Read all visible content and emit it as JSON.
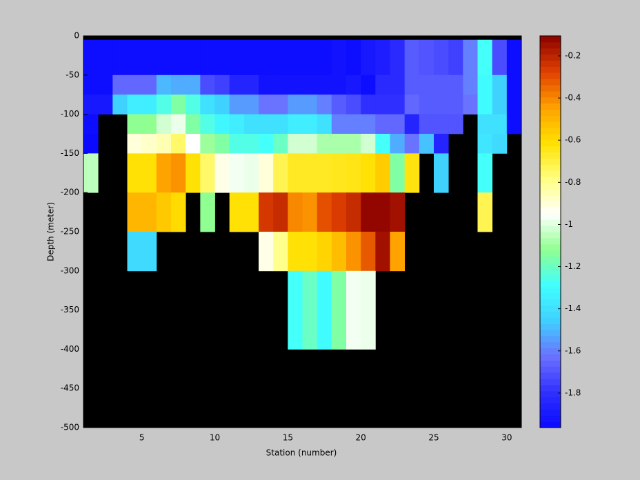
{
  "chart_data": {
    "type": "heatmap",
    "xlabel": "Station (number)",
    "ylabel": "Depth (meter)",
    "xlim": [
      1,
      31
    ],
    "ylim": [
      -500,
      0
    ],
    "xticks": [
      5,
      10,
      15,
      20,
      25,
      30
    ],
    "yticks": [
      0,
      -50,
      -100,
      -150,
      -200,
      -250,
      -300,
      -350,
      -400,
      -450,
      -500
    ],
    "x_edges": [
      1,
      2,
      3,
      4,
      5,
      6,
      7,
      8,
      9,
      10,
      11,
      12,
      13,
      14,
      15,
      16,
      17,
      18,
      19,
      20,
      21,
      22,
      23,
      24,
      25,
      26,
      27,
      28,
      29,
      30,
      31
    ],
    "y_edges": [
      -5,
      -50,
      -75,
      -100,
      -125,
      -150,
      -200,
      -250,
      -300,
      -400
    ],
    "z": [
      [
        -1.95,
        -1.95,
        -1.95,
        -1.95,
        -1.95,
        -1.95,
        -1.95,
        -1.95,
        -1.95,
        -1.95,
        -1.95,
        -1.95,
        -1.95,
        -1.95,
        -1.95,
        -1.95,
        -1.95,
        -1.93,
        -1.95,
        -1.9,
        -1.88,
        -1.82,
        -1.68,
        -1.7,
        -1.72,
        -1.75,
        -1.6,
        -1.28,
        -1.72,
        -1.95
      ],
      [
        -1.95,
        -1.95,
        -1.65,
        -1.65,
        -1.65,
        -1.5,
        -1.52,
        -1.52,
        -1.72,
        -1.75,
        -1.85,
        -1.85,
        -1.93,
        -1.93,
        -1.93,
        -1.93,
        -1.93,
        -1.93,
        -1.9,
        -1.95,
        -1.82,
        -1.82,
        -1.68,
        -1.68,
        -1.68,
        -1.68,
        -1.6,
        -1.3,
        -1.45,
        -1.95
      ],
      [
        -1.9,
        -1.9,
        -1.45,
        -1.35,
        -1.35,
        -1.25,
        -1.15,
        -1.25,
        -1.4,
        -1.45,
        -1.55,
        -1.55,
        -1.62,
        -1.62,
        -1.55,
        -1.55,
        -1.6,
        -1.68,
        -1.72,
        -1.8,
        -1.8,
        -1.8,
        -1.65,
        -1.68,
        -1.68,
        -1.68,
        -1.62,
        -1.3,
        -1.45,
        -1.95
      ],
      [
        -1.95,
        null,
        null,
        -1.12,
        -1.12,
        -1.02,
        -0.98,
        -1.15,
        -1.25,
        -1.32,
        -1.35,
        -1.4,
        -1.4,
        -1.4,
        -1.35,
        -1.35,
        -1.4,
        -1.6,
        -1.6,
        -1.6,
        -1.65,
        -1.65,
        -1.85,
        -1.7,
        -1.7,
        -1.7,
        null,
        -1.4,
        -1.4,
        -1.95
      ],
      [
        -1.97,
        null,
        null,
        -0.9,
        -0.88,
        -0.85,
        -0.75,
        -0.95,
        -1.1,
        -1.15,
        -1.25,
        -1.25,
        -1.28,
        -1.2,
        -1.02,
        -1.02,
        -1.08,
        -1.08,
        -1.08,
        -1.02,
        -1.28,
        -1.52,
        -1.62,
        -1.48,
        -1.85,
        null,
        null,
        -1.38,
        -1.42,
        null
      ],
      [
        -1.05,
        null,
        null,
        -0.62,
        -0.62,
        -0.45,
        -0.42,
        -0.62,
        -0.75,
        -0.92,
        -0.97,
        -0.98,
        -0.9,
        -0.72,
        -0.66,
        -0.66,
        -0.66,
        -0.65,
        -0.64,
        -0.62,
        -0.56,
        -1.15,
        -0.63,
        null,
        -1.45,
        null,
        null,
        -1.28,
        null,
        null
      ],
      [
        null,
        null,
        null,
        -0.5,
        -0.5,
        -0.55,
        -0.6,
        null,
        -1.12,
        null,
        -0.62,
        -0.62,
        -0.25,
        -0.22,
        -0.4,
        -0.42,
        -0.3,
        -0.26,
        -0.22,
        -0.12,
        -0.12,
        -0.15,
        null,
        null,
        null,
        null,
        null,
        -0.72,
        null,
        null
      ],
      [
        null,
        null,
        null,
        -1.42,
        -1.42,
        null,
        null,
        null,
        null,
        null,
        null,
        null,
        -0.92,
        -0.8,
        -0.62,
        -0.62,
        -0.58,
        -0.52,
        -0.42,
        -0.32,
        -0.15,
        -0.45,
        null,
        null,
        null,
        null,
        null,
        null,
        null,
        null
      ],
      [
        null,
        null,
        null,
        null,
        null,
        null,
        null,
        null,
        null,
        null,
        null,
        null,
        null,
        null,
        -1.28,
        -1.2,
        -1.3,
        -1.15,
        -0.97,
        -0.98,
        null,
        null,
        null,
        null,
        null,
        null,
        null,
        null,
        null,
        null
      ]
    ],
    "clim": [
      -1.964,
      -0.105
    ],
    "cticks": [
      -1.8,
      -1.6,
      -1.4,
      -1.2,
      -1,
      -0.8,
      -0.6,
      -0.4,
      -0.2
    ],
    "colormap": [
      "#0a0aff",
      "#3030ff",
      "#6a70ff",
      "#40d0ff",
      "#40ffff",
      "#90ff90",
      "#ffffff",
      "#ffff80",
      "#ffe000",
      "#ffa000",
      "#e04000",
      "#8b0000"
    ],
    "background": "#000000"
  }
}
